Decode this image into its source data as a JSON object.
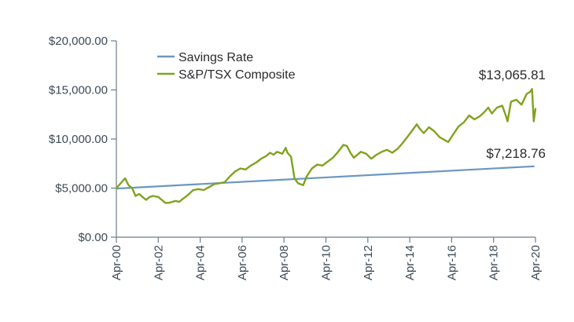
{
  "chart_data": {
    "type": "line",
    "title": "",
    "xlabel": "",
    "ylabel": "",
    "ylim": [
      0,
      20000
    ],
    "xlim": [
      "2000-04",
      "2020-04"
    ],
    "grid": false,
    "legend_position": "top-left",
    "x_ticks": [
      "Apr-00",
      "Apr-02",
      "Apr-04",
      "Apr-06",
      "Apr-08",
      "Apr-10",
      "Apr-12",
      "Apr-14",
      "Apr-16",
      "Apr-18",
      "Apr-20"
    ],
    "y_ticks": [
      "$0.00",
      "$5,000.00",
      "$10,000.00",
      "$15,000.00",
      "$20,000.00"
    ],
    "annotations": [
      "$13,065.81",
      "$7,218.76"
    ],
    "series": [
      {
        "name": "Savings Rate",
        "color": "#6b96c3",
        "x": [
          "2000-04",
          "2020-03"
        ],
        "values": [
          4950,
          7218.76
        ]
      },
      {
        "name": "S&P/TSX Composite",
        "color": "#7fa31e",
        "x": [
          "2000-04",
          "2000-07",
          "2000-09",
          "2000-11",
          "2001-01",
          "2001-03",
          "2001-05",
          "2001-07",
          "2001-09",
          "2001-11",
          "2002-01",
          "2002-04",
          "2002-06",
          "2002-08",
          "2002-10",
          "2002-12",
          "2003-02",
          "2003-04",
          "2003-06",
          "2003-09",
          "2003-12",
          "2004-03",
          "2004-06",
          "2004-09",
          "2004-12",
          "2005-03",
          "2005-06",
          "2005-09",
          "2005-12",
          "2006-03",
          "2006-06",
          "2006-09",
          "2006-12",
          "2007-03",
          "2007-06",
          "2007-08",
          "2007-10",
          "2007-12",
          "2008-03",
          "2008-05",
          "2008-06",
          "2008-08",
          "2008-10",
          "2008-12",
          "2009-03",
          "2009-05",
          "2009-08",
          "2009-11",
          "2010-02",
          "2010-05",
          "2010-08",
          "2010-11",
          "2011-02",
          "2011-04",
          "2011-06",
          "2011-08",
          "2011-10",
          "2011-12",
          "2012-03",
          "2012-06",
          "2012-09",
          "2012-12",
          "2013-03",
          "2013-06",
          "2013-09",
          "2013-12",
          "2014-03",
          "2014-06",
          "2014-08",
          "2014-10",
          "2014-12",
          "2015-03",
          "2015-06",
          "2015-09",
          "2015-12",
          "2016-02",
          "2016-05",
          "2016-08",
          "2016-11",
          "2017-02",
          "2017-05",
          "2017-08",
          "2017-11",
          "2018-01",
          "2018-03",
          "2018-06",
          "2018-09",
          "2018-11",
          "2018-12",
          "2019-02",
          "2019-05",
          "2019-08",
          "2019-11",
          "2020-01",
          "2020-02",
          "2020-03",
          "2020-04"
        ],
        "values": [
          5000,
          5600,
          6000,
          5300,
          5000,
          4200,
          4400,
          4100,
          3800,
          4100,
          4200,
          4100,
          3800,
          3500,
          3500,
          3600,
          3700,
          3600,
          3900,
          4300,
          4800,
          4900,
          4800,
          5100,
          5400,
          5500,
          5600,
          6200,
          6700,
          7000,
          6900,
          7300,
          7600,
          8000,
          8300,
          8600,
          8400,
          8700,
          8500,
          9100,
          8600,
          8200,
          6000,
          5500,
          5300,
          6200,
          7000,
          7400,
          7300,
          7700,
          8100,
          8700,
          9400,
          9300,
          8600,
          8100,
          8400,
          8700,
          8500,
          8000,
          8400,
          8700,
          8900,
          8600,
          9000,
          9600,
          10300,
          11000,
          11500,
          11000,
          10600,
          11200,
          10800,
          10200,
          9900,
          9700,
          10500,
          11300,
          11700,
          12400,
          12000,
          12300,
          12800,
          13200,
          12600,
          13200,
          13400,
          12400,
          11800,
          13800,
          14000,
          13500,
          14600,
          14800,
          15100,
          11800,
          13065.81
        ]
      }
    ]
  }
}
